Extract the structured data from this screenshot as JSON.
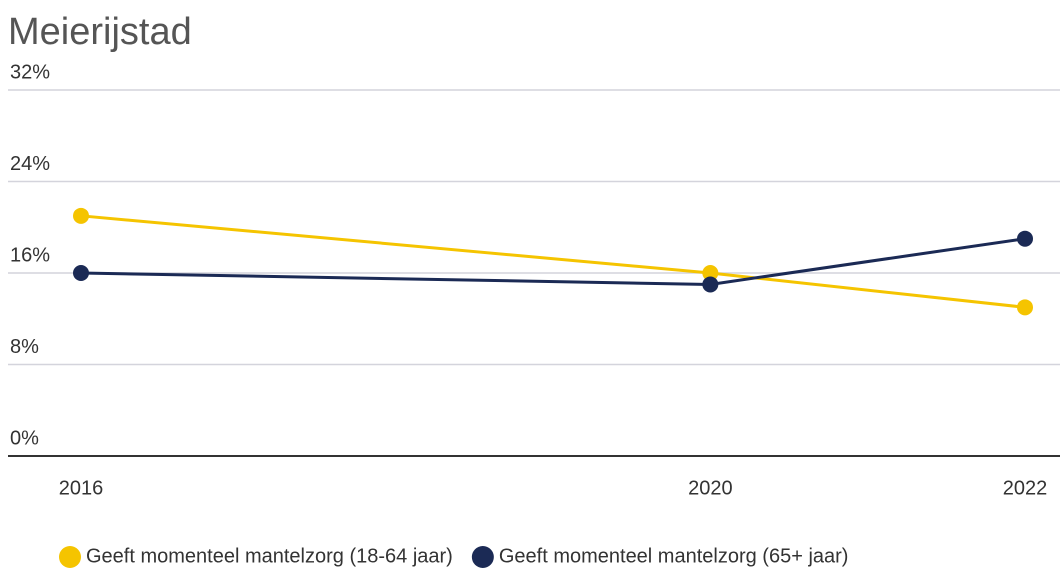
{
  "chart_data": {
    "type": "line",
    "title": "Meierijstad",
    "x": [
      2016,
      2020,
      2022
    ],
    "series": [
      {
        "name": "Geeft momenteel mantelzorg (18-64 jaar)",
        "color": "#f5c400",
        "values": [
          21,
          16,
          13
        ]
      },
      {
        "name": "Geeft momenteel mantelzorg (65+ jaar)",
        "color": "#1b2a55",
        "values": [
          16,
          15,
          19
        ]
      }
    ],
    "xlim": [
      2016,
      2022
    ],
    "xticks": [
      2016,
      2020,
      2022
    ],
    "ylim": [
      0,
      32
    ],
    "yticks": [
      {
        "value": 0,
        "label": "0%"
      },
      {
        "value": 8,
        "label": "8%"
      },
      {
        "value": 16,
        "label": "16%"
      },
      {
        "value": 24,
        "label": "24%"
      },
      {
        "value": 32,
        "label": "32%"
      }
    ],
    "grid": true,
    "legend": "bottom"
  }
}
